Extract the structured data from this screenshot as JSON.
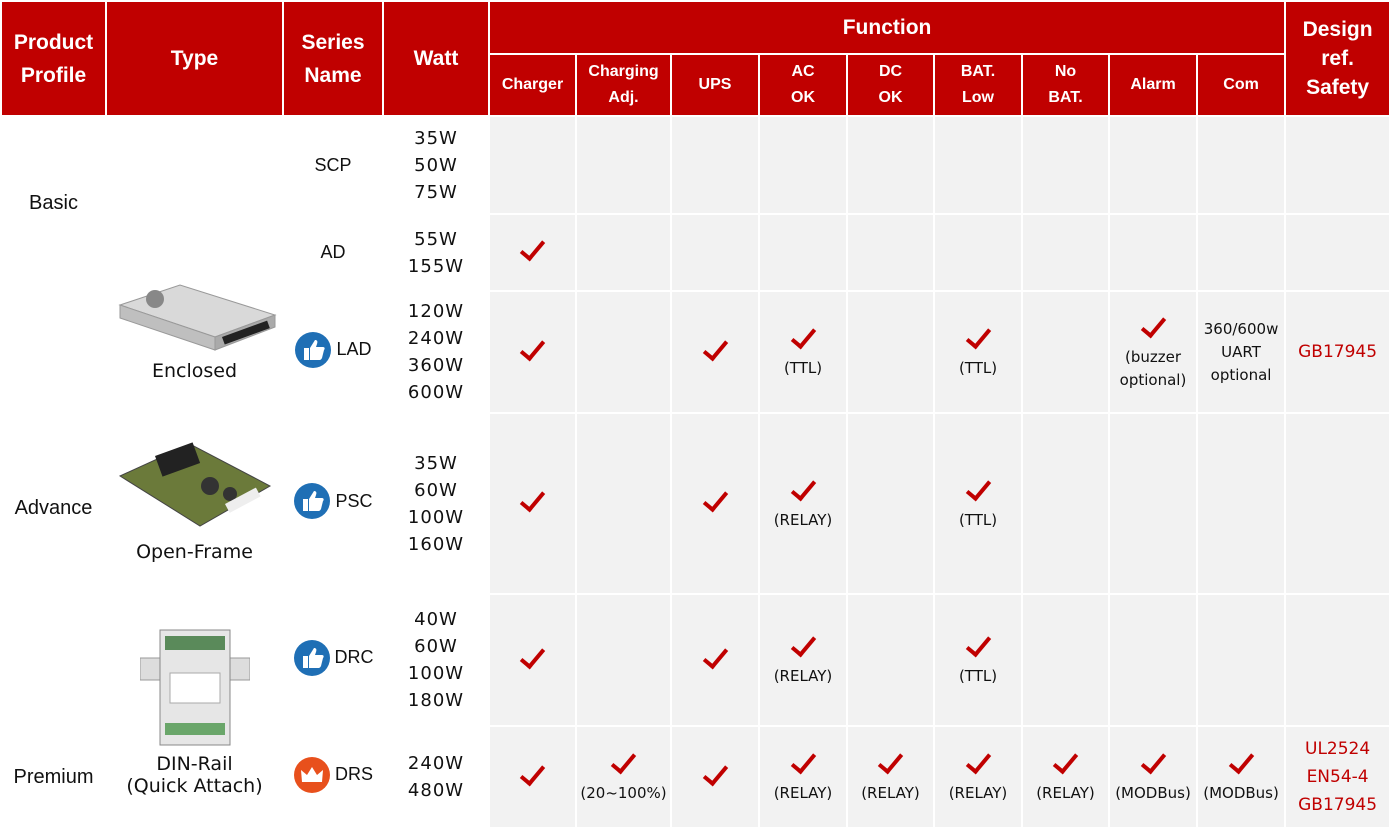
{
  "header": {
    "product_profile": "Product\nProfile",
    "type": "Type",
    "series_name": "Series\nName",
    "watt": "Watt",
    "function": "Function",
    "functions": [
      "Charger",
      "Charging\nAdj.",
      "UPS",
      "AC\nOK",
      "DC\nOK",
      "BAT.\nLow",
      "No\nBAT.",
      "Alarm",
      "Com"
    ],
    "design": "Design\nref.\nSafety"
  },
  "profiles": [
    "Basic",
    "Advance",
    "Premium"
  ],
  "types": [
    "Enclosed",
    "Open-Frame",
    "DIN-Rail\n(Quick Attach)"
  ],
  "rows": [
    {
      "series": "SCP",
      "watt": "35W\n50W\n75W"
    },
    {
      "series": "AD",
      "watt": "55W\n155W"
    },
    {
      "series": "LAD",
      "watt": "120W\n240W\n360W\n600W",
      "notes": [
        null,
        null,
        null,
        "(TTL)",
        null,
        "(TTL)",
        null,
        "(buzzer\noptional)",
        "360/600w\nUART\noptional"
      ],
      "safety": "GB17945"
    },
    {
      "series": "PSC",
      "watt": "35W\n60W\n100W\n160W",
      "notes": [
        null,
        null,
        null,
        "(RELAY)",
        null,
        "(TTL)",
        null,
        null,
        null
      ]
    },
    {
      "series": "DRC",
      "watt": "40W\n60W\n100W\n180W",
      "notes": [
        null,
        null,
        null,
        "(RELAY)",
        null,
        "(TTL)",
        null,
        null,
        null
      ]
    },
    {
      "series": "DRS",
      "watt": "240W\n480W",
      "notes": [
        null,
        "(20~100%)",
        null,
        "(RELAY)",
        "(RELAY)",
        "(RELAY)",
        "(RELAY)",
        "(MODBus)",
        "(MODBus)"
      ],
      "safety": "UL2524\nEN54-4\nGB17945"
    }
  ]
}
